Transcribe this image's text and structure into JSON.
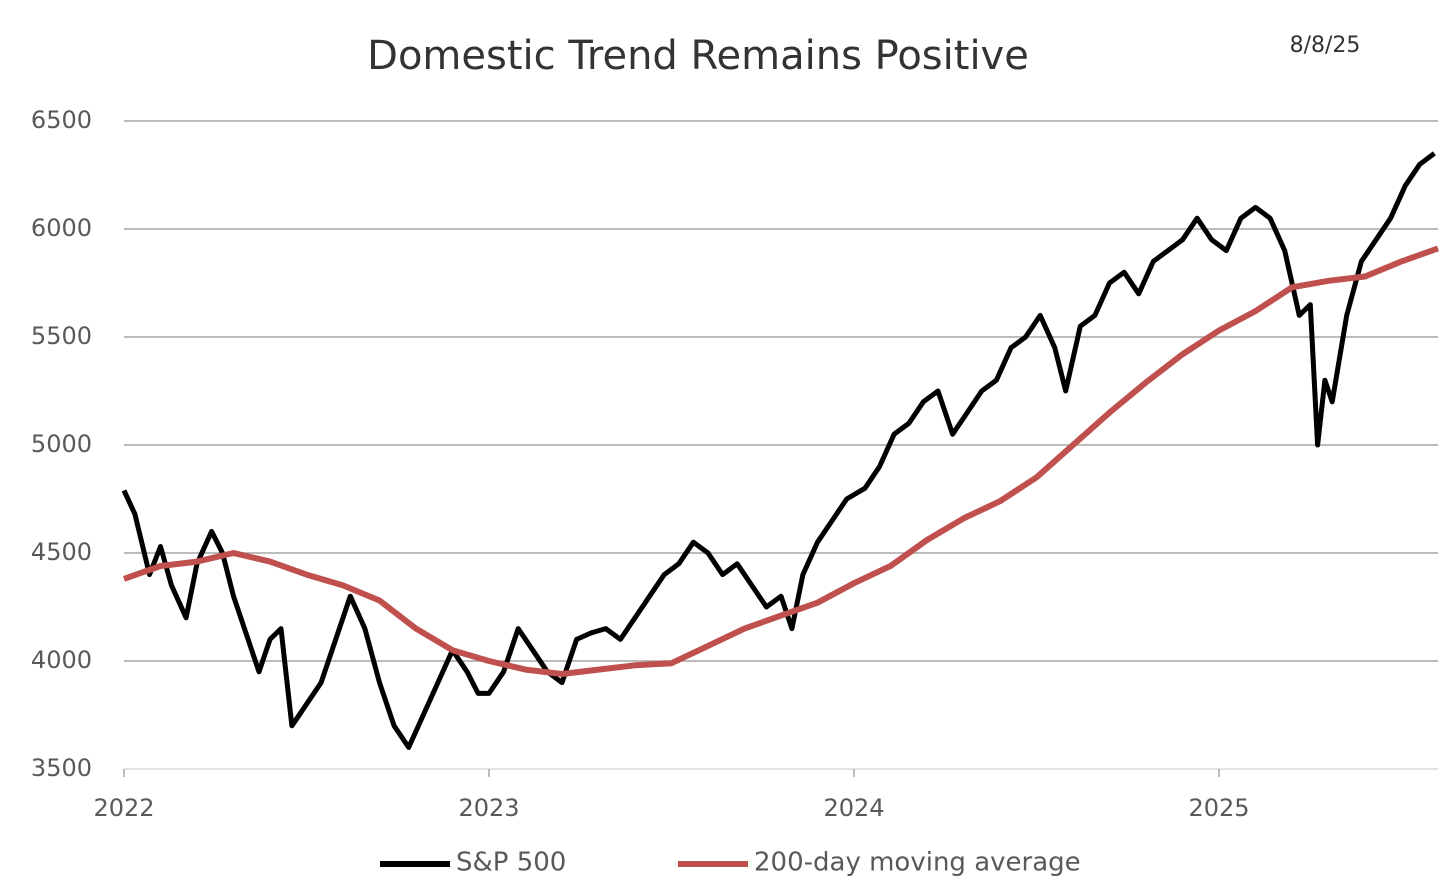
{
  "chart_data": {
    "type": "line",
    "title": "Domestic Trend Remains Positive",
    "annotation": "8/8/25",
    "xlim": [
      2022,
      2025.6
    ],
    "xticks": [
      2022,
      2023,
      2024,
      2025
    ],
    "ylim": [
      3500,
      6500
    ],
    "yticks": [
      3500,
      4000,
      4500,
      5000,
      5500,
      6000,
      6500
    ],
    "grid": true,
    "legend": "bottom",
    "series": [
      {
        "name": "S&P 500",
        "color": "#000000",
        "x": [
          2022.0,
          2022.03,
          2022.07,
          2022.1,
          2022.13,
          2022.17,
          2022.2,
          2022.24,
          2022.27,
          2022.3,
          2022.34,
          2022.37,
          2022.4,
          2022.43,
          2022.46,
          2022.5,
          2022.54,
          2022.58,
          2022.62,
          2022.66,
          2022.7,
          2022.74,
          2022.78,
          2022.82,
          2022.86,
          2022.9,
          2022.94,
          2022.97,
          2023.0,
          2023.04,
          2023.08,
          2023.12,
          2023.16,
          2023.2,
          2023.24,
          2023.28,
          2023.32,
          2023.36,
          2023.4,
          2023.44,
          2023.48,
          2023.52,
          2023.56,
          2023.6,
          2023.64,
          2023.68,
          2023.72,
          2023.76,
          2023.8,
          2023.83,
          2023.86,
          2023.9,
          2023.94,
          2023.98,
          2024.03,
          2024.07,
          2024.11,
          2024.15,
          2024.19,
          2024.23,
          2024.27,
          2024.31,
          2024.35,
          2024.39,
          2024.43,
          2024.47,
          2024.51,
          2024.55,
          2024.58,
          2024.62,
          2024.66,
          2024.7,
          2024.74,
          2024.78,
          2024.82,
          2024.86,
          2024.9,
          2024.94,
          2024.98,
          2025.02,
          2025.06,
          2025.1,
          2025.14,
          2025.18,
          2025.22,
          2025.25,
          2025.27,
          2025.29,
          2025.31,
          2025.35,
          2025.39,
          2025.43,
          2025.47,
          2025.51,
          2025.55,
          2025.59
        ],
        "values": [
          4790,
          4680,
          4400,
          4530,
          4350,
          4200,
          4450,
          4600,
          4500,
          4300,
          4100,
          3950,
          4100,
          4150,
          3700,
          3800,
          3900,
          4100,
          4300,
          4150,
          3900,
          3700,
          3600,
          3750,
          3900,
          4050,
          3950,
          3850,
          3850,
          3950,
          4150,
          4050,
          3950,
          3900,
          4100,
          4130,
          4150,
          4100,
          4200,
          4300,
          4400,
          4450,
          4550,
          4500,
          4400,
          4450,
          4350,
          4250,
          4300,
          4150,
          4400,
          4550,
          4650,
          4750,
          4800,
          4900,
          5050,
          5100,
          5200,
          5250,
          5050,
          5150,
          5250,
          5300,
          5450,
          5500,
          5600,
          5450,
          5250,
          5550,
          5600,
          5750,
          5800,
          5700,
          5850,
          5900,
          5950,
          6050,
          5950,
          5900,
          6050,
          6100,
          6050,
          5900,
          5600,
          5650,
          5000,
          5300,
          5200,
          5600,
          5850,
          5950,
          6050,
          6200,
          6300,
          6350
        ]
      },
      {
        "name": "200-day moving average",
        "color": "#c0504d",
        "x": [
          2022.0,
          2022.1,
          2022.2,
          2022.3,
          2022.4,
          2022.5,
          2022.6,
          2022.7,
          2022.8,
          2022.9,
          2023.0,
          2023.1,
          2023.2,
          2023.3,
          2023.4,
          2023.5,
          2023.6,
          2023.7,
          2023.8,
          2023.9,
          2024.0,
          2024.1,
          2024.2,
          2024.3,
          2024.4,
          2024.5,
          2024.6,
          2024.7,
          2024.8,
          2024.9,
          2025.0,
          2025.1,
          2025.2,
          2025.3,
          2025.4,
          2025.5,
          2025.6
        ],
        "values": [
          4380,
          4440,
          4460,
          4500,
          4460,
          4400,
          4350,
          4280,
          4150,
          4050,
          4000,
          3960,
          3940,
          3960,
          3980,
          3990,
          4070,
          4150,
          4210,
          4270,
          4360,
          4440,
          4560,
          4660,
          4740,
          4850,
          5000,
          5150,
          5290,
          5420,
          5530,
          5620,
          5730,
          5760,
          5780,
          5850,
          5910
        ]
      }
    ]
  }
}
